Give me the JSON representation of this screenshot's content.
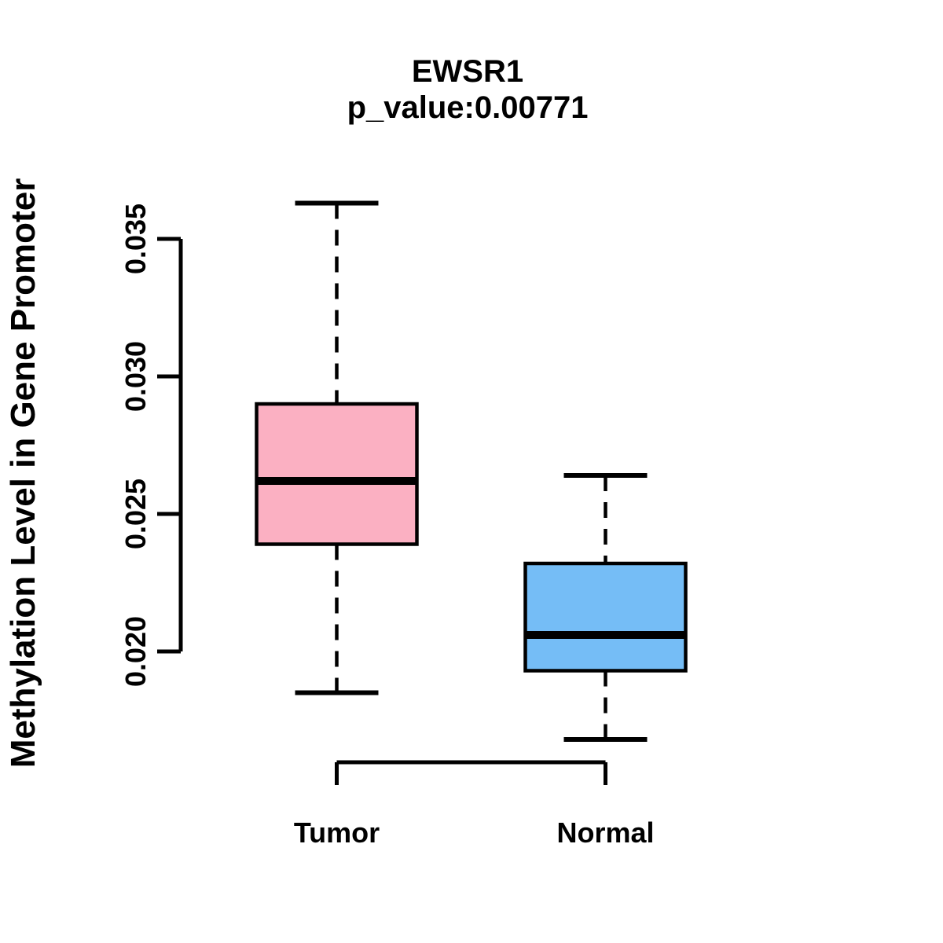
{
  "figure": {
    "background": "#ffffff",
    "line_color": "#000000"
  },
  "chart_data": {
    "type": "boxplot",
    "title": "EWSR1",
    "subtitle": "p_value:0.00771",
    "p_value": 0.00771,
    "gene": "EWSR1",
    "ylabel": "Methylation Level in Gene Promoter",
    "xlabel": "",
    "categories": [
      "Tumor",
      "Normal"
    ],
    "y_ticks": [
      "0.020",
      "0.025",
      "0.030",
      "0.035"
    ],
    "y_axis_range": [
      0.02,
      0.035
    ],
    "ylim": [
      0.0165,
      0.0368
    ],
    "grid": false,
    "legend": "none",
    "series": [
      {
        "name": "Tumor",
        "color": "#fbb0c2",
        "whisker_low": 0.0185,
        "q1": 0.0239,
        "median": 0.0262,
        "q3": 0.029,
        "whisker_high": 0.0363
      },
      {
        "name": "Normal",
        "color": "#75bdf6",
        "whisker_low": 0.0168,
        "q1": 0.0193,
        "median": 0.0206,
        "q3": 0.0232,
        "whisker_high": 0.0264
      }
    ]
  }
}
